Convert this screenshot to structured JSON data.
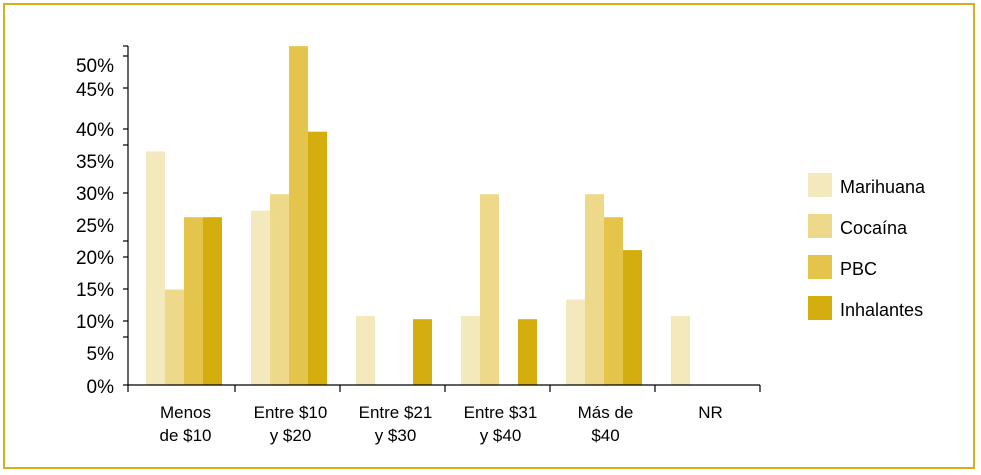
{
  "chart_data": {
    "type": "bar",
    "categories": [
      [
        "Menos",
        "de $10"
      ],
      [
        "Entre $10",
        "y $20"
      ],
      [
        "Entre $21",
        "y $30"
      ],
      [
        "Entre $31",
        "y $40"
      ],
      [
        "Más de",
        "$40"
      ],
      [
        "NR"
      ]
    ],
    "series": [
      {
        "name": "Marihuana",
        "color": "#f3e9bd",
        "values": [
          35.5,
          26.5,
          10.5,
          10.5,
          13,
          10.5
        ]
      },
      {
        "name": "Cocaína",
        "color": "#eed98a",
        "values": [
          14.5,
          29,
          0,
          29,
          29,
          0
        ]
      },
      {
        "name": "PBC",
        "color": "#e4c44a",
        "values": [
          25.5,
          51.5,
          0,
          0,
          25.5,
          0
        ]
      },
      {
        "name": "Inhalantes",
        "color": "#d4ae0e",
        "values": [
          25.5,
          38.5,
          10,
          10,
          20.5,
          0
        ]
      }
    ],
    "yticks": [
      "0%",
      "5%",
      "10%",
      "15%",
      "20%",
      "25%",
      "30%",
      "35%",
      "40%",
      "45%",
      "50%"
    ],
    "ylim": [
      0,
      50
    ],
    "legend_position": "right",
    "grid": false,
    "frame_color": "#d4b21e"
  }
}
